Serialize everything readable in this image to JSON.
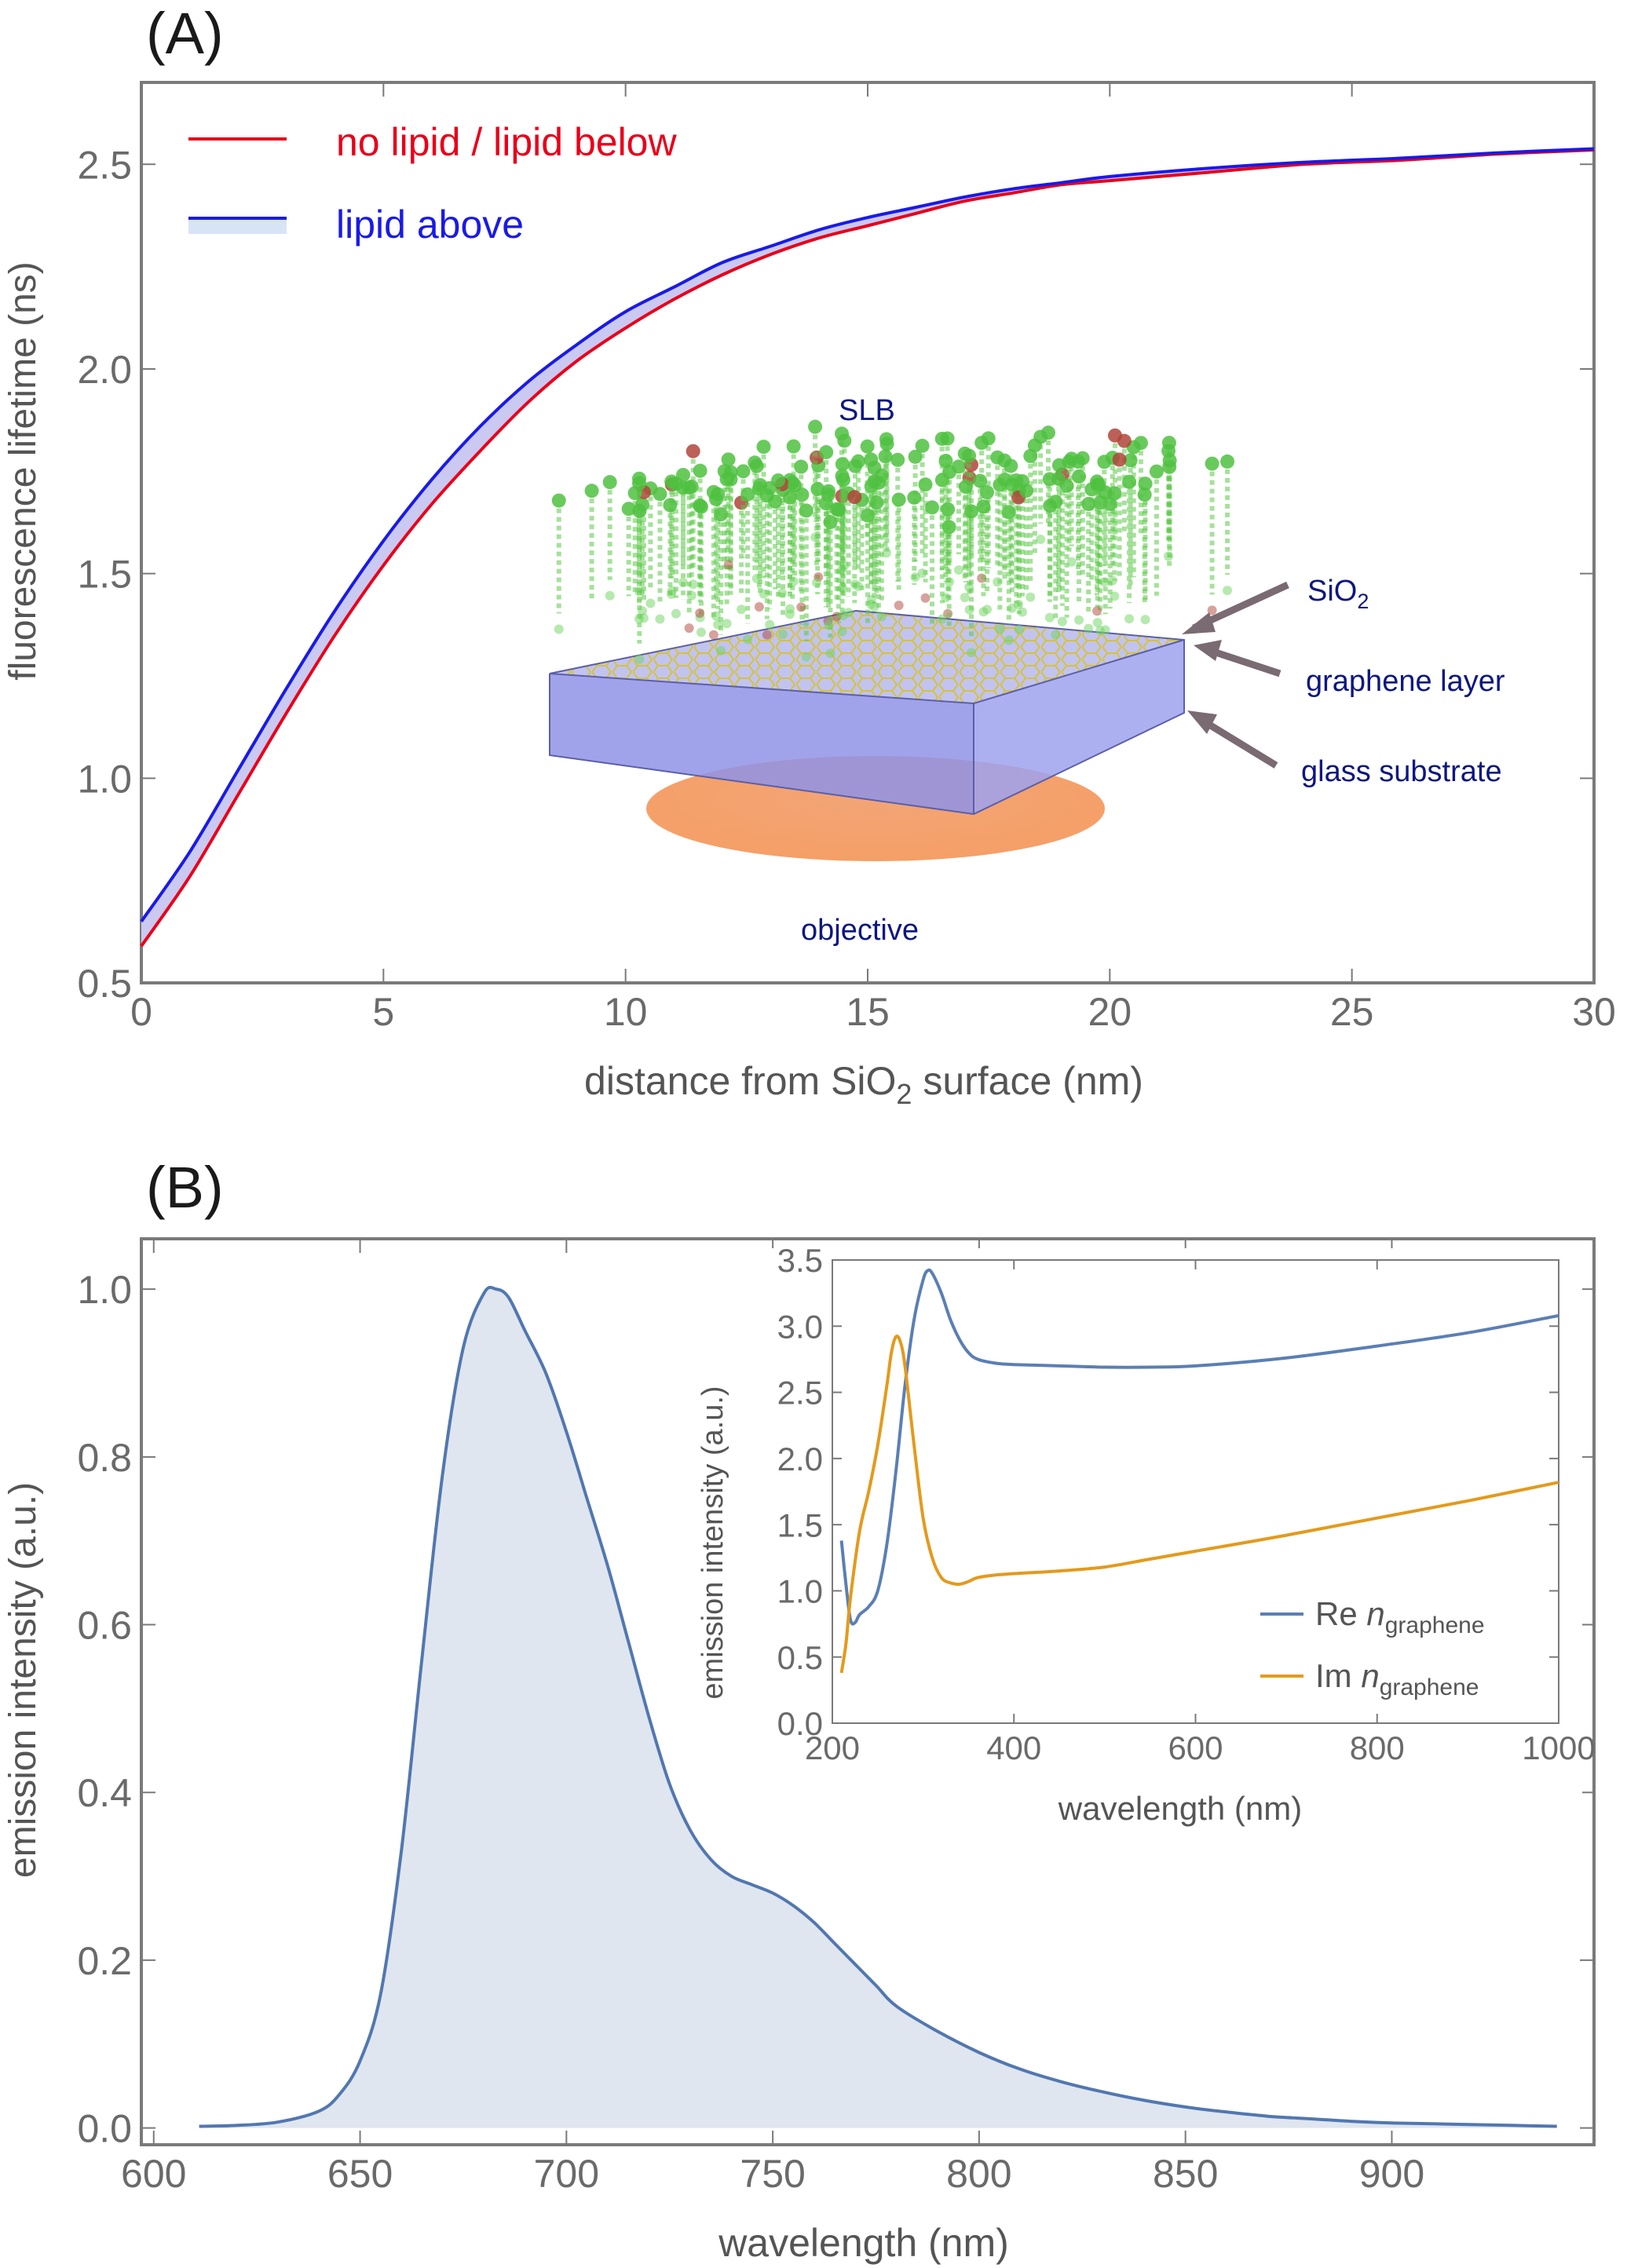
{
  "colors": {
    "red": "#e8001a",
    "blue": "#1a1ae6",
    "band": "#c9c9f2",
    "spec": "#5277b0",
    "specFill": "#dfe6f0",
    "re": "#5b7fb4",
    "im": "#e39a1c",
    "axis": "#7a7a7a",
    "tick": "#6a6a6a",
    "navy": "#0d1780"
  },
  "chart_data": [
    {
      "panel_label": "(A)",
      "type": "line",
      "xlabel": "distance from SiO",
      "xlabel_sub": "2",
      "xlabel_tail": " surface (nm)",
      "ylabel": "fluorescence lifetime (ns)",
      "xlim": [
        0,
        30
      ],
      "ylim": [
        0.5,
        2.7
      ],
      "xticks": [
        0,
        5,
        10,
        15,
        20,
        25,
        30
      ],
      "yticks": [
        0.5,
        1.0,
        1.5,
        2.0,
        2.5
      ],
      "xtick_labels": [
        "0",
        "5",
        "10",
        "15",
        "20",
        "25",
        "30"
      ],
      "ytick_labels": [
        "0.5",
        "1.0",
        "1.5",
        "2.0",
        "2.5"
      ],
      "legend": [
        "no lipid / lipid below",
        "lipid above"
      ],
      "series": [
        {
          "name": "no lipid / lipid below",
          "x": [
            0,
            1,
            2,
            3,
            4,
            5,
            6,
            7,
            8,
            9,
            10,
            11,
            12,
            13,
            14,
            15,
            16,
            17,
            18,
            19,
            20,
            22,
            24,
            26,
            28,
            30
          ],
          "values": [
            0.59,
            0.76,
            0.96,
            1.16,
            1.35,
            1.52,
            1.67,
            1.8,
            1.92,
            2.02,
            2.1,
            2.17,
            2.23,
            2.28,
            2.32,
            2.35,
            2.38,
            2.41,
            2.43,
            2.45,
            2.46,
            2.48,
            2.5,
            2.51,
            2.525,
            2.535
          ]
        },
        {
          "name": "lipid above",
          "x": [
            0,
            1,
            2,
            3,
            4,
            5,
            6,
            7,
            8,
            9,
            10,
            11,
            12,
            13,
            14,
            15,
            16,
            17,
            18,
            19,
            20,
            22,
            24,
            26,
            28,
            30
          ],
          "values": [
            0.65,
            0.82,
            1.02,
            1.22,
            1.41,
            1.58,
            1.73,
            1.86,
            1.97,
            2.06,
            2.14,
            2.2,
            2.26,
            2.3,
            2.34,
            2.37,
            2.395,
            2.42,
            2.44,
            2.455,
            2.47,
            2.49,
            2.505,
            2.515,
            2.528,
            2.538
          ]
        }
      ],
      "inset_labels": {
        "slb": "SLB",
        "sio2": "SiO",
        "sio2_sub": "2",
        "graphene": "graphene layer",
        "glass": "glass substrate",
        "objective": "objective"
      }
    },
    {
      "panel_label": "(B)",
      "type": "area",
      "xlabel": "wavelength (nm)",
      "ylabel": "emission intensity (a.u.)",
      "xlim": [
        597,
        949
      ],
      "ylim": [
        -0.02,
        1.06
      ],
      "xticks": [
        600,
        650,
        700,
        750,
        800,
        850,
        900
      ],
      "yticks": [
        0.0,
        0.2,
        0.4,
        0.6,
        0.8,
        1.0
      ],
      "xtick_labels": [
        "600",
        "650",
        "700",
        "750",
        "800",
        "850",
        "900"
      ],
      "ytick_labels": [
        "0.0",
        "0.2",
        "0.4",
        "0.6",
        "0.8",
        "1.0"
      ],
      "series": [
        {
          "name": "emission",
          "x": [
            611,
            620,
            630,
            640,
            645,
            650,
            655,
            660,
            665,
            670,
            675,
            680,
            683,
            686,
            690,
            695,
            700,
            705,
            710,
            715,
            720,
            725,
            730,
            735,
            740,
            745,
            750,
            755,
            760,
            765,
            770,
            775,
            780,
            790,
            800,
            810,
            820,
            830,
            840,
            850,
            860,
            870,
            880,
            890,
            900,
            910,
            920,
            930,
            940
          ],
          "values": [
            0.002,
            0.003,
            0.007,
            0.02,
            0.04,
            0.08,
            0.16,
            0.33,
            0.56,
            0.78,
            0.93,
            0.995,
            1.0,
            0.99,
            0.95,
            0.9,
            0.83,
            0.75,
            0.67,
            0.58,
            0.49,
            0.41,
            0.355,
            0.32,
            0.3,
            0.29,
            0.28,
            0.265,
            0.245,
            0.22,
            0.195,
            0.17,
            0.145,
            0.115,
            0.09,
            0.07,
            0.055,
            0.043,
            0.033,
            0.025,
            0.019,
            0.014,
            0.011,
            0.008,
            0.006,
            0.005,
            0.004,
            0.003,
            0.002
          ]
        }
      ],
      "inset": {
        "type": "line",
        "xlabel": "wavelength (nm)",
        "ylabel": "emission intensity (a.u.)",
        "xlim": [
          200,
          1000
        ],
        "ylim": [
          0.0,
          3.5
        ],
        "xticks": [
          200,
          400,
          600,
          800,
          1000
        ],
        "yticks": [
          0.0,
          0.5,
          1.0,
          1.5,
          2.0,
          2.5,
          3.0,
          3.5
        ],
        "xtick_labels": [
          "200",
          "400",
          "600",
          "800",
          "1000"
        ],
        "ytick_labels": [
          "0.0",
          "0.5",
          "1.0",
          "1.5",
          "2.0",
          "2.5",
          "3.0",
          "3.5"
        ],
        "legend": [
          {
            "prefix": "Re ",
            "n": "n",
            "sub": "graphene"
          },
          {
            "prefix": "Im ",
            "n": "n",
            "sub": "graphene"
          }
        ],
        "series": [
          {
            "name": "Re n_graphene",
            "x": [
              210,
              215,
              220,
              225,
              230,
              240,
              250,
              260,
              270,
              280,
              290,
              300,
              305,
              310,
              320,
              330,
              340,
              350,
              360,
              380,
              400,
              450,
              500,
              550,
              600,
              700,
              800,
              900,
              1000
            ],
            "values": [
              1.38,
              1.05,
              0.78,
              0.76,
              0.82,
              0.88,
              1.0,
              1.35,
              1.9,
              2.55,
              3.05,
              3.35,
              3.42,
              3.4,
              3.25,
              3.05,
              2.9,
              2.8,
              2.75,
              2.72,
              2.71,
              2.7,
              2.69,
              2.69,
              2.7,
              2.76,
              2.85,
              2.95,
              3.08
            ]
          },
          {
            "name": "Im n_graphene",
            "x": [
              210,
              215,
              220,
              230,
              240,
              250,
              260,
              265,
              270,
              275,
              280,
              290,
              300,
              310,
              320,
              330,
              340,
              350,
              360,
              380,
              400,
              450,
              500,
              550,
              600,
              700,
              800,
              900,
              1000
            ],
            "values": [
              0.38,
              0.6,
              0.95,
              1.45,
              1.75,
              2.1,
              2.55,
              2.8,
              2.92,
              2.88,
              2.7,
              2.1,
              1.55,
              1.25,
              1.1,
              1.06,
              1.05,
              1.07,
              1.1,
              1.12,
              1.13,
              1.15,
              1.18,
              1.24,
              1.3,
              1.42,
              1.55,
              1.68,
              1.82
            ]
          }
        ]
      }
    }
  ]
}
